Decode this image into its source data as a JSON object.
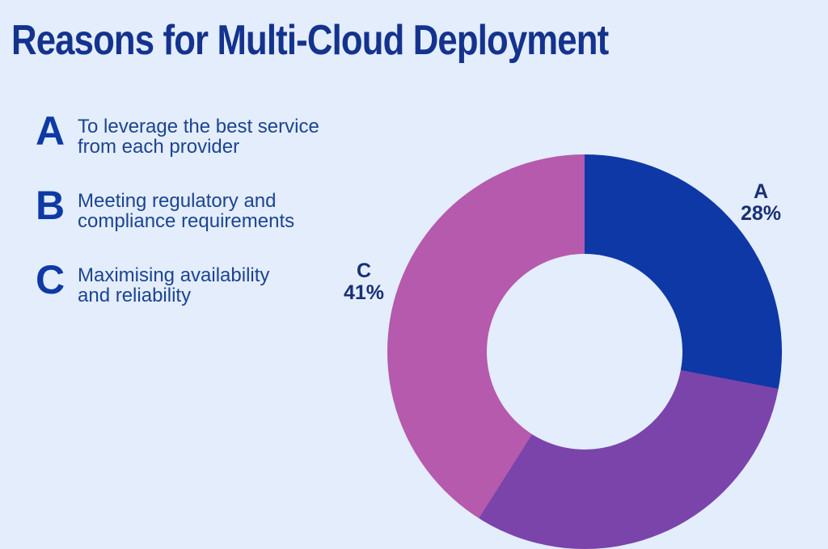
{
  "page": {
    "title": "Reasons for Multi-Cloud Deployment",
    "background_color": "#e3edfc",
    "title_color": "#14338e"
  },
  "legend": {
    "items": [
      {
        "letter": "A",
        "lines": [
          "To leverage the best service",
          "from each provider"
        ]
      },
      {
        "letter": "B",
        "lines": [
          "Meeting regulatory and",
          "compliance requirements"
        ]
      },
      {
        "letter": "C",
        "lines": [
          "Maximising availability",
          "and reliability"
        ]
      }
    ]
  },
  "chart_data": {
    "type": "pie",
    "subtype": "donut",
    "title": "Reasons for Multi-Cloud Deployment",
    "start_angle_deg": 0,
    "direction": "clockwise",
    "hole_ratio": 0.5,
    "legend_position": "left",
    "slices": [
      {
        "label": "A",
        "category": "To leverage the best service from each provider",
        "value": 28,
        "pct_label": "28%",
        "color": "#0e38a5",
        "label_visible": true
      },
      {
        "label": "B",
        "category": "Meeting regulatory and compliance requirements",
        "value": 31,
        "pct_label": "31%",
        "color": "#7a44ab",
        "label_visible": false
      },
      {
        "label": "C",
        "category": "Maximising availability and reliability",
        "value": 41,
        "pct_label": "41%",
        "color": "#b55aac",
        "label_visible": true
      }
    ],
    "layout_note": "Donut chart clipped at bottom edge of canvas; slice B label outside visible area, value inferred as remainder."
  }
}
